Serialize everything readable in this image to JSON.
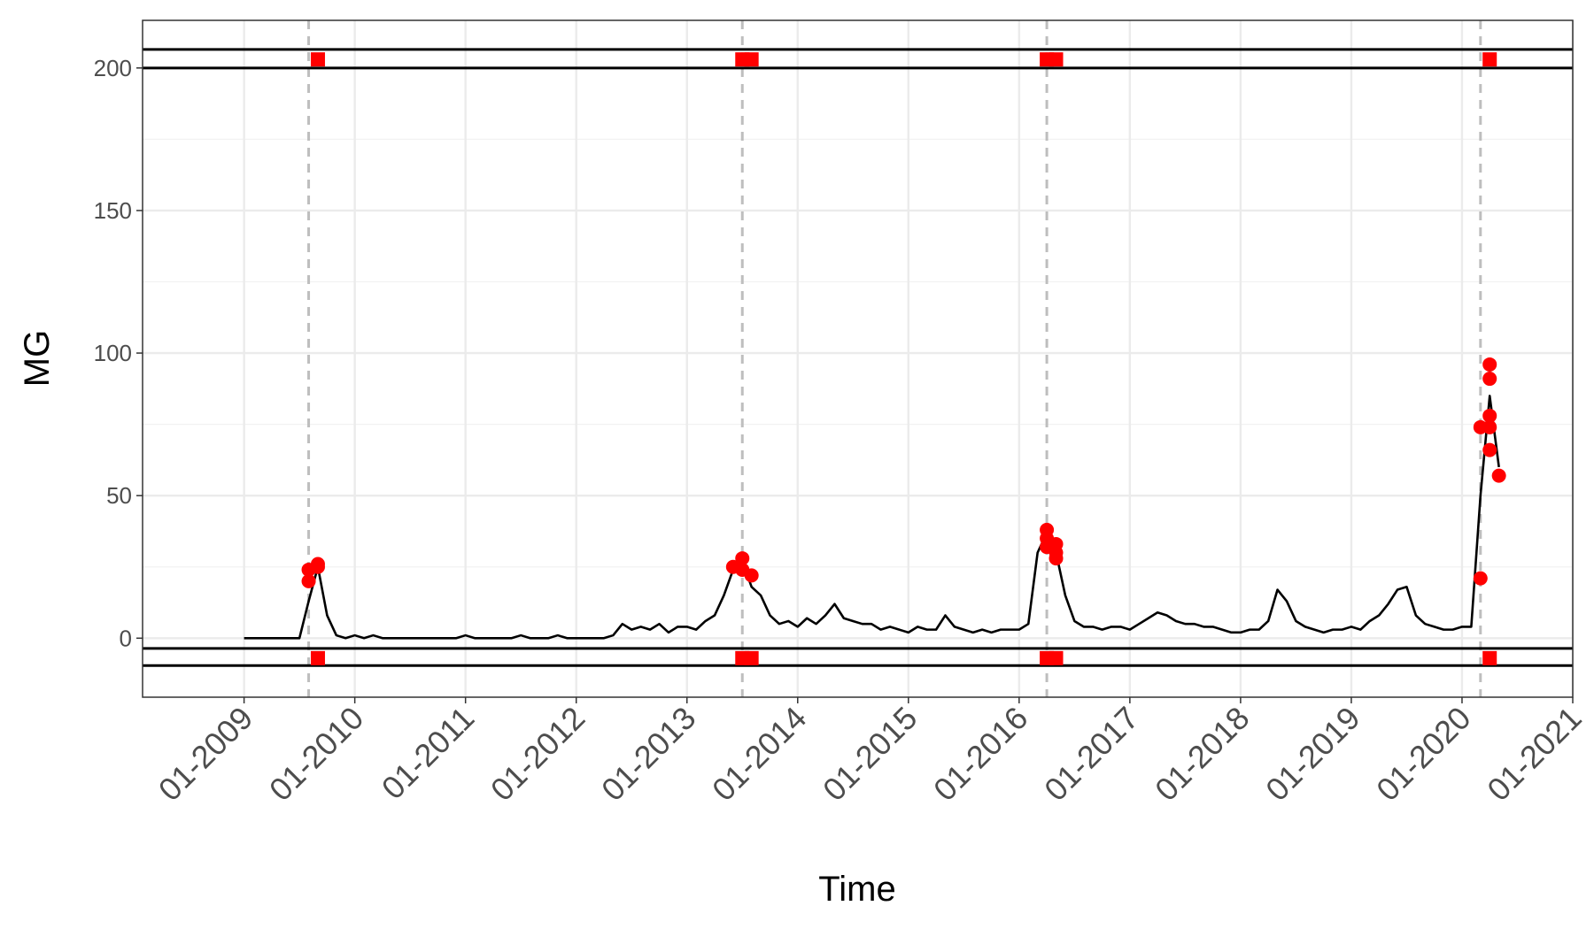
{
  "chart_data": {
    "type": "line",
    "x_label": "Time",
    "y_label": "MG",
    "x": [
      "2009-01",
      "2009-02",
      "2009-03",
      "2009-04",
      "2009-05",
      "2009-06",
      "2009-07",
      "2009-08",
      "2009-09",
      "2009-10",
      "2009-11",
      "2009-12",
      "2010-01",
      "2010-02",
      "2010-03",
      "2010-04",
      "2010-05",
      "2010-06",
      "2010-07",
      "2010-08",
      "2010-09",
      "2010-10",
      "2010-11",
      "2010-12",
      "2011-01",
      "2011-02",
      "2011-03",
      "2011-04",
      "2011-05",
      "2011-06",
      "2011-07",
      "2011-08",
      "2011-09",
      "2011-10",
      "2011-11",
      "2011-12",
      "2012-01",
      "2012-02",
      "2012-03",
      "2012-04",
      "2012-05",
      "2012-06",
      "2012-07",
      "2012-08",
      "2012-09",
      "2012-10",
      "2012-11",
      "2012-12",
      "2013-01",
      "2013-02",
      "2013-03",
      "2013-04",
      "2013-05",
      "2013-06",
      "2013-07",
      "2013-08",
      "2013-09",
      "2013-10",
      "2013-11",
      "2013-12",
      "2014-01",
      "2014-02",
      "2014-03",
      "2014-04",
      "2014-05",
      "2014-06",
      "2014-07",
      "2014-08",
      "2014-09",
      "2014-10",
      "2014-11",
      "2014-12",
      "2015-01",
      "2015-02",
      "2015-03",
      "2015-04",
      "2015-05",
      "2015-06",
      "2015-07",
      "2015-08",
      "2015-09",
      "2015-10",
      "2015-11",
      "2015-12",
      "2016-01",
      "2016-02",
      "2016-03",
      "2016-04",
      "2016-05",
      "2016-06",
      "2016-07",
      "2016-08",
      "2016-09",
      "2016-10",
      "2016-11",
      "2016-12",
      "2017-01",
      "2017-02",
      "2017-03",
      "2017-04",
      "2017-05",
      "2017-06",
      "2017-07",
      "2017-08",
      "2017-09",
      "2017-10",
      "2017-11",
      "2017-12",
      "2018-01",
      "2018-02",
      "2018-03",
      "2018-04",
      "2018-05",
      "2018-06",
      "2018-07",
      "2018-08",
      "2018-09",
      "2018-10",
      "2018-11",
      "2018-12",
      "2019-01",
      "2019-02",
      "2019-03",
      "2019-04",
      "2019-05",
      "2019-06",
      "2019-07",
      "2019-08",
      "2019-09",
      "2019-10",
      "2019-11",
      "2019-12",
      "2020-01",
      "2020-02",
      "2020-03",
      "2020-04",
      "2020-05"
    ],
    "series": [
      {
        "color": "#000000",
        "values": [
          0,
          0,
          0,
          0,
          0,
          0,
          0,
          13,
          25,
          8,
          1,
          0,
          1,
          0,
          1,
          0,
          0,
          0,
          0,
          0,
          0,
          0,
          0,
          0,
          1,
          0,
          0,
          0,
          0,
          0,
          1,
          0,
          0,
          0,
          1,
          0,
          0,
          0,
          0,
          0,
          1,
          5,
          3,
          4,
          3,
          5,
          2,
          4,
          4,
          3,
          6,
          8,
          15,
          24,
          27,
          18,
          15,
          8,
          5,
          6,
          4,
          7,
          5,
          8,
          12,
          7,
          6,
          5,
          5,
          3,
          4,
          3,
          2,
          4,
          3,
          3,
          8,
          4,
          3,
          2,
          3,
          2,
          3,
          3,
          3,
          5,
          30,
          37,
          30,
          15,
          6,
          4,
          4,
          3,
          4,
          4,
          3,
          5,
          7,
          9,
          8,
          6,
          5,
          5,
          4,
          4,
          3,
          2,
          2,
          3,
          3,
          6,
          17,
          13,
          6,
          4,
          3,
          2,
          3,
          3,
          4,
          3,
          6,
          8,
          12,
          17,
          18,
          8,
          5,
          4,
          3,
          3,
          4,
          4,
          50,
          85,
          60
        ]
      }
    ],
    "points": {
      "color": "#ff0000",
      "x": [
        "2009-08",
        "2009-08",
        "2009-09",
        "2009-09",
        "2013-06",
        "2013-07",
        "2013-07",
        "2013-08",
        "2016-04",
        "2016-04",
        "2016-04",
        "2016-05",
        "2016-05",
        "2016-05",
        "2020-03",
        "2020-03",
        "2020-04",
        "2020-04",
        "2020-04",
        "2020-04",
        "2020-04",
        "2020-05"
      ],
      "values": [
        20,
        24,
        26,
        25,
        25,
        28,
        24,
        22,
        32,
        38,
        35,
        30,
        33,
        28,
        21,
        74,
        96,
        91,
        78,
        66,
        74,
        57
      ]
    },
    "alarms": {
      "color": "#ff0000",
      "x": [
        "2009-09",
        "2013-07",
        "2013-08",
        "2016-04",
        "2016-05",
        "2020-04"
      ],
      "upper": 203,
      "lower": -7
    },
    "hlines": [
      206.5,
      200,
      -3.6,
      -9.6
    ],
    "vlines": {
      "color": "#bebebe",
      "x": [
        "2009-08",
        "2013-07",
        "2016-04",
        "2020-03"
      ]
    },
    "xlim": [
      "2008-02",
      "2021-01"
    ],
    "ylim": [
      -20.7,
      216.7
    ],
    "xticks": [
      {
        "value": "2009-01",
        "label": "01-2009"
      },
      {
        "value": "2010-01",
        "label": "01-2010"
      },
      {
        "value": "2011-01",
        "label": "01-2011"
      },
      {
        "value": "2012-01",
        "label": "01-2012"
      },
      {
        "value": "2013-01",
        "label": "01-2013"
      },
      {
        "value": "2014-01",
        "label": "01-2014"
      },
      {
        "value": "2015-01",
        "label": "01-2015"
      },
      {
        "value": "2016-01",
        "label": "01-2016"
      },
      {
        "value": "2017-01",
        "label": "01-2017"
      },
      {
        "value": "2018-01",
        "label": "01-2018"
      },
      {
        "value": "2019-01",
        "label": "01-2019"
      },
      {
        "value": "2020-01",
        "label": "01-2020"
      },
      {
        "value": "2021-01",
        "label": "01-2021"
      }
    ],
    "yticks": [
      0,
      50,
      100,
      150,
      200
    ],
    "yminor": [
      25,
      75,
      125,
      175
    ],
    "grid": true
  }
}
